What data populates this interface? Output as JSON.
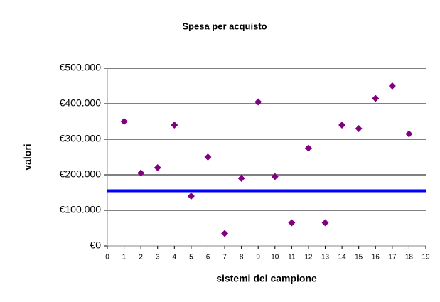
{
  "chart_data": {
    "type": "scatter",
    "title": "Spesa per acquisto",
    "x_label": "sistemi del campione",
    "y_label": "valori",
    "x": [
      1,
      2,
      3,
      4,
      5,
      6,
      7,
      8,
      9,
      10,
      11,
      12,
      13,
      14,
      15,
      16,
      17,
      18
    ],
    "series": [
      {
        "color": "#800080",
        "values": [
          350000,
          205000,
          220000,
          340000,
          140000,
          250000,
          35000,
          190000,
          405000,
          195000,
          65000,
          275000,
          65000,
          340000,
          330000,
          415000,
          450000,
          315000
        ]
      }
    ],
    "reference_line": {
      "value": 155000,
      "color": "#0000ff"
    },
    "xlim": [
      0,
      19
    ],
    "xticks": [
      0,
      1,
      2,
      3,
      4,
      5,
      6,
      7,
      8,
      9,
      10,
      11,
      12,
      13,
      14,
      15,
      16,
      17,
      18,
      19
    ],
    "ylim": [
      0,
      500000
    ],
    "yticks": [
      {
        "value": 0,
        "label": "€0"
      },
      {
        "value": 100000,
        "label": "€100.000"
      },
      {
        "value": 200000,
        "label": "€200.000"
      },
      {
        "value": 300000,
        "label": "€300.000"
      },
      {
        "value": 400000,
        "label": "€400.000"
      },
      {
        "value": 500000,
        "label": "€500.000"
      }
    ],
    "grid": true
  }
}
